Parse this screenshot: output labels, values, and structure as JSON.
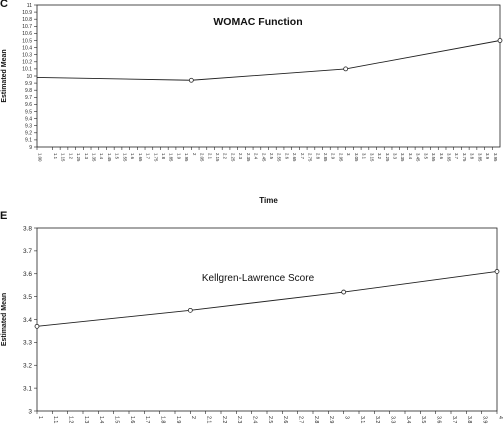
{
  "panels": [
    "C",
    "E"
  ],
  "chart_data": [
    {
      "type": "line",
      "title": "WOMAC Function",
      "xlabel": "Time",
      "ylabel": "Estimated Mean",
      "xlim": [
        1,
        4
      ],
      "ylim": [
        9,
        11
      ],
      "y_ticks": [
        "9",
        "9.1",
        "9.2",
        "9.3",
        "9.4",
        "9.5",
        "9.6",
        "9.7",
        "9.8",
        "9.9",
        "10",
        "10.1",
        "10.2",
        "10.3",
        "10.4",
        "10.5",
        "10.6",
        "10.7",
        "10.8",
        "10.9",
        "11"
      ],
      "x_ticks": [
        "1.00",
        "1.1",
        "1.15",
        "1.2",
        "1.25",
        "1.3",
        "1.35",
        "1.4",
        "1.45",
        "1.5",
        "1.55",
        "1.6",
        "1.65",
        "1.7",
        "1.75",
        "1.8",
        "1.85",
        "1.9",
        "1.95",
        "2",
        "2.05",
        "2.1",
        "2.15",
        "2.2",
        "2.25",
        "2.3",
        "2.35",
        "2.4",
        "2.45",
        "2.5",
        "2.55",
        "2.6",
        "2.65",
        "2.7",
        "2.75",
        "2.8",
        "2.85",
        "2.9",
        "2.95",
        "3",
        "3.05",
        "3.1",
        "3.15",
        "3.2",
        "3.25",
        "3.3",
        "3.35",
        "3.4",
        "3.45",
        "3.5",
        "3.55",
        "3.6",
        "3.65",
        "3.7",
        "3.75",
        "3.8",
        "3.85",
        "3.9",
        "3.95"
      ],
      "series": [
        {
          "x": [
            1,
            2,
            3,
            4
          ],
          "y": [
            9.98,
            9.94,
            10.1,
            10.5
          ],
          "markers": [
            false,
            true,
            true,
            true
          ]
        }
      ],
      "grid": false
    },
    {
      "type": "line",
      "title": "Kellgren-Lawrence Score",
      "xlabel": "",
      "ylabel": "Estimated Mean",
      "xlim": [
        1,
        4
      ],
      "ylim": [
        3,
        3.8
      ],
      "y_ticks": [
        "3",
        "3.1",
        "3.2",
        "3.3",
        "3.4",
        "3.5",
        "3.6",
        "3.7",
        "3.8"
      ],
      "x_ticks": [
        "1",
        "1.1",
        "1.2",
        "1.3",
        "1.4",
        "1.5",
        "1.6",
        "1.7",
        "1.8",
        "1.9",
        "2",
        "2.1",
        "2.2",
        "2.3",
        "2.4",
        "2.5",
        "2.6",
        "2.7",
        "2.8",
        "2.9",
        "3",
        "3.1",
        "3.2",
        "3.3",
        "3.4",
        "3.5",
        "3.6",
        "3.7",
        "3.8",
        "3.9",
        "4"
      ],
      "series": [
        {
          "x": [
            1,
            2,
            3,
            4
          ],
          "y": [
            3.37,
            3.44,
            3.52,
            3.61
          ],
          "markers": [
            true,
            true,
            true,
            true
          ]
        }
      ],
      "grid": false
    }
  ]
}
